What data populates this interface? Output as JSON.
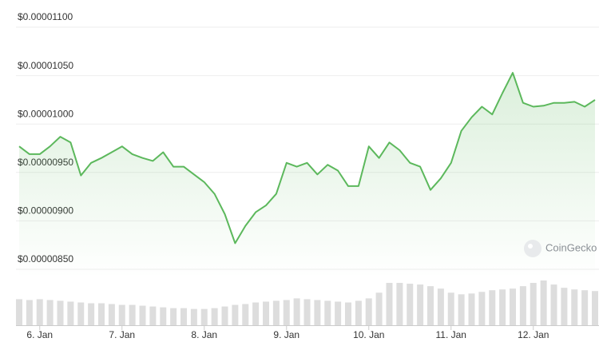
{
  "chart_data": {
    "type": "line",
    "categories": [
      null,
      null,
      "6. Jan",
      null,
      null,
      null,
      null,
      null,
      null,
      null,
      "7. Jan",
      null,
      null,
      null,
      null,
      null,
      null,
      null,
      "8. Jan",
      null,
      null,
      null,
      null,
      null,
      null,
      null,
      "9. Jan",
      null,
      null,
      null,
      null,
      null,
      null,
      null,
      "10. Jan",
      null,
      null,
      null,
      null,
      null,
      null,
      null,
      "11. Jan",
      null,
      null,
      null,
      null,
      null,
      null,
      null,
      "12. Jan",
      null,
      null,
      null,
      null,
      null,
      null
    ],
    "values": [
      9.67e-06,
      9.59e-06,
      9.59e-06,
      9.67e-06,
      9.77e-06,
      9.71e-06,
      9.37e-06,
      9.5e-06,
      9.55e-06,
      9.61e-06,
      9.67e-06,
      9.59e-06,
      9.55e-06,
      9.52e-06,
      9.61e-06,
      9.46e-06,
      9.46e-06,
      9.38e-06,
      9.3e-06,
      9.18e-06,
      8.97e-06,
      8.67e-06,
      8.85e-06,
      8.99e-06,
      9.06e-06,
      9.18e-06,
      9.5e-06,
      9.46e-06,
      9.5e-06,
      9.38e-06,
      9.48e-06,
      9.42e-06,
      9.26e-06,
      9.26e-06,
      9.67e-06,
      9.55e-06,
      9.71e-06,
      9.63e-06,
      9.5e-06,
      9.46e-06,
      9.22e-06,
      9.34e-06,
      9.5e-06,
      9.83e-06,
      9.97e-06,
      1.008e-05,
      1e-05,
      1.022e-05,
      1.043e-05,
      1.012e-05,
      1.008e-05,
      1.009e-05,
      1.012e-05,
      1.012e-05,
      1.013e-05,
      1.008e-05,
      1.015e-05
    ],
    "volumes": [
      32,
      31,
      32,
      31,
      30,
      29,
      28,
      27,
      27,
      26,
      25,
      25,
      24,
      23,
      22,
      21,
      21,
      20,
      20,
      21,
      23,
      25,
      26,
      28,
      29,
      30,
      31,
      33,
      32,
      31,
      30,
      29,
      28,
      30,
      33,
      40,
      52,
      52,
      51,
      50,
      48,
      45,
      40,
      38,
      39,
      41,
      43,
      44,
      45,
      48,
      52,
      55,
      50,
      46,
      44,
      43,
      42
    ],
    "color": "#5cb85c",
    "ylim": [
      8.3e-06,
      1.11e-05
    ],
    "yticks": [
      {
        "value": 8.5e-06,
        "label": "$0.00000850"
      },
      {
        "value": 9e-06,
        "label": "$0.00000900"
      },
      {
        "value": 9.5e-06,
        "label": "$0.00000950"
      },
      {
        "value": 1e-05,
        "label": "$0.00001000"
      },
      {
        "value": 1.05e-05,
        "label": "$0.00001050"
      },
      {
        "value": 1.1e-05,
        "label": "$0.00001100"
      }
    ],
    "grid": true,
    "watermark": "CoinGecko"
  }
}
